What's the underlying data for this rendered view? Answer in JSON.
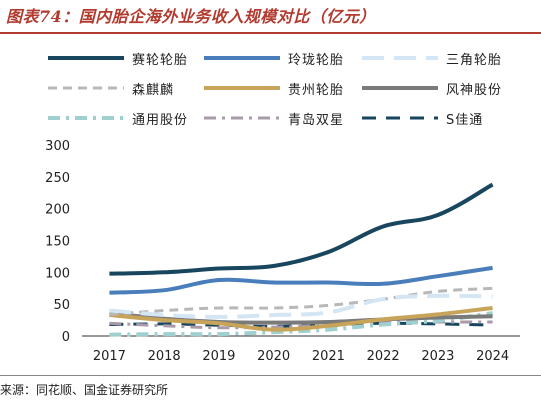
{
  "title": "图表74：国内胎企海外业务收入规模对比（亿元）",
  "source": "来源：同花顺、国金证券研究所",
  "chart_data": {
    "type": "line",
    "categories": [
      "2017",
      "2018",
      "2019",
      "2020",
      "2021",
      "2022",
      "2023",
      "2024"
    ],
    "ylim": [
      0,
      300
    ],
    "yticks": [
      "0",
      "50",
      "100",
      "150",
      "200",
      "250",
      "300"
    ],
    "grid": false,
    "legend_placement": "top",
    "series": [
      {
        "name": "赛轮轮胎",
        "color": "#17465e",
        "dash": "solid",
        "width": 4,
        "values": [
          98,
          100,
          106,
          110,
          132,
          172,
          190,
          238
        ]
      },
      {
        "name": "玲珑轮胎",
        "color": "#4a7ebb",
        "dash": "solid",
        "width": 4,
        "values": [
          68,
          72,
          88,
          84,
          84,
          82,
          94,
          107
        ]
      },
      {
        "name": "三角轮胎",
        "color": "#d4e6f3",
        "dash": "long",
        "width": 4,
        "values": [
          40,
          33,
          30,
          33,
          37,
          58,
          63,
          62
        ]
      },
      {
        "name": "森麒麟",
        "color": "#b8b8b8",
        "dash": "dashed",
        "width": 3,
        "values": [
          34,
          40,
          44,
          44,
          48,
          58,
          70,
          75
        ]
      },
      {
        "name": "贵州轮胎",
        "color": "#c8a45a",
        "dash": "solid",
        "width": 4,
        "values": [
          33,
          25,
          20,
          10,
          16,
          26,
          34,
          44
        ]
      },
      {
        "name": "风神股份",
        "color": "#7a7a7a",
        "dash": "solid",
        "width": 4,
        "values": [
          36,
          27,
          22,
          21,
          22,
          26,
          29,
          31
        ]
      },
      {
        "name": "通用股份",
        "color": "#9fcfcf",
        "dash": "dashdot",
        "width": 4,
        "values": [
          2,
          3,
          3,
          6,
          10,
          18,
          24,
          36
        ]
      },
      {
        "name": "青岛双星",
        "color": "#a89aa8",
        "dash": "dashdot",
        "width": 3,
        "values": [
          20,
          16,
          13,
          14,
          17,
          23,
          22,
          22
        ]
      },
      {
        "name": "S佳通",
        "color": "#17465e",
        "dash": "bigdash",
        "width": 3,
        "values": [
          18,
          19,
          17,
          15,
          18,
          20,
          19,
          17
        ]
      }
    ]
  }
}
